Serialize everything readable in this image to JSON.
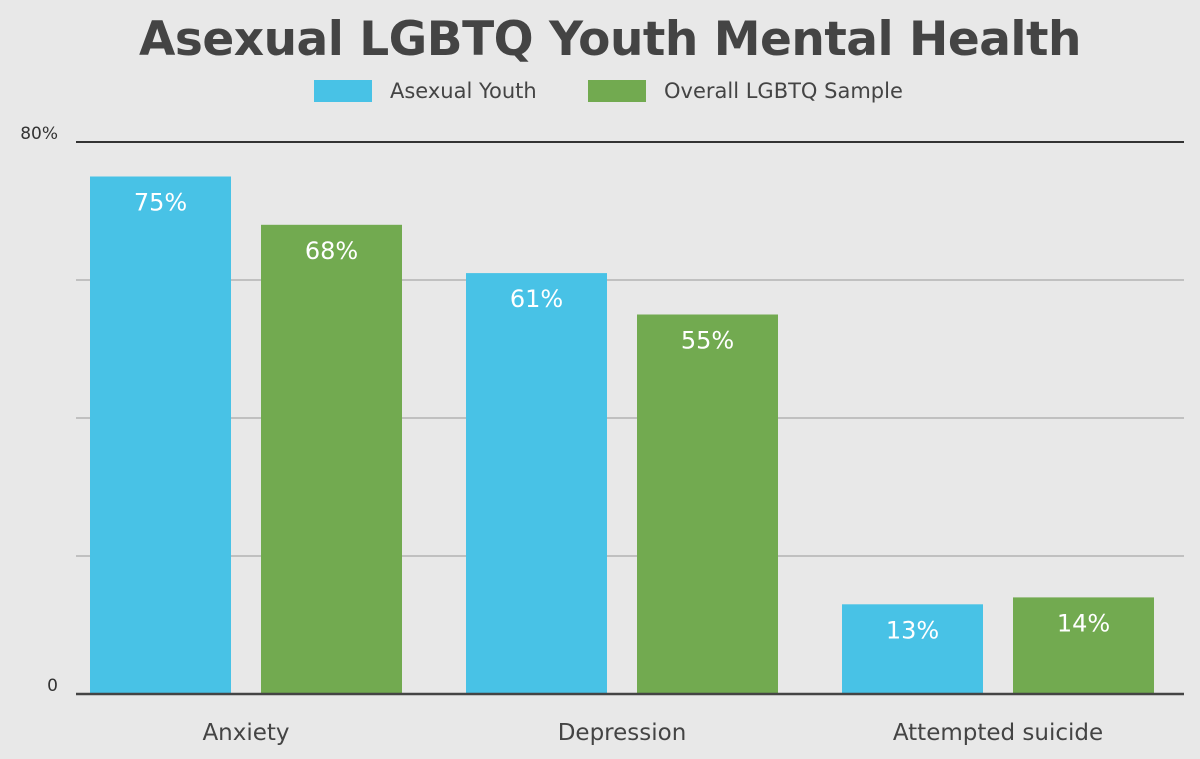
{
  "chart_data": {
    "type": "bar",
    "title": "Asexual LGBTQ Youth Mental Health",
    "xlabel": "",
    "ylabel": "",
    "ylim": [
      0,
      80
    ],
    "y_ticks": [
      0,
      20,
      40,
      60,
      80
    ],
    "y_tick_labels": [
      "0",
      "",
      "",
      "",
      "80%"
    ],
    "grid": true,
    "legend_position": "top-center",
    "categories": [
      "Anxiety",
      "Depression",
      "Attempted suicide"
    ],
    "series": [
      {
        "name": "Asexual Youth",
        "color": "#48c2e6",
        "values": [
          75,
          61,
          13
        ],
        "labels": [
          "75%",
          "61%",
          "13%"
        ]
      },
      {
        "name": "Overall LGBTQ Sample",
        "color": "#72aa50",
        "values": [
          68,
          55,
          14
        ],
        "labels": [
          "68%",
          "55%",
          "14%"
        ]
      }
    ]
  }
}
